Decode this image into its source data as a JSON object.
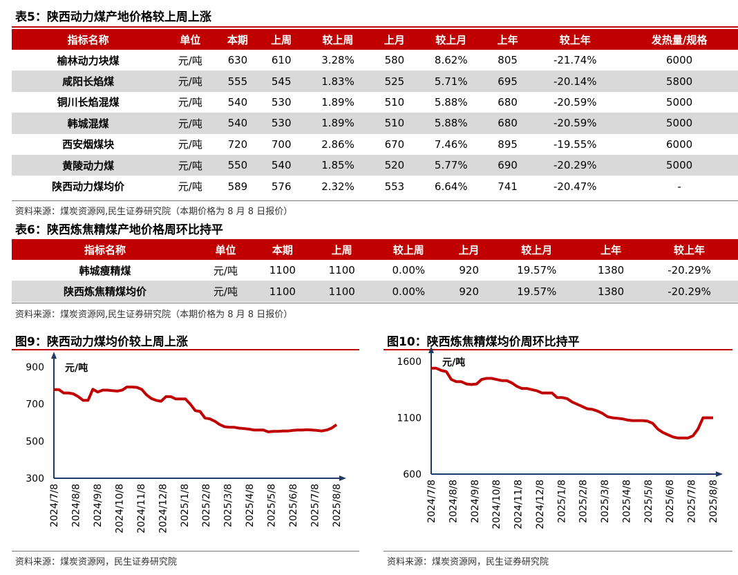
{
  "table5": {
    "title": "表5：陕西动力煤产地价格较上周上涨",
    "headers": [
      "指标名称",
      "单位",
      "本期",
      "上周",
      "较上周",
      "上月",
      "较上月",
      "上年",
      "较上年",
      "发热量/规格"
    ],
    "rows": [
      [
        "榆林动力块煤",
        "元/吨",
        "630",
        "610",
        "3.28%",
        "580",
        "8.62%",
        "805",
        "-21.74%",
        "6000"
      ],
      [
        "咸阳长焰煤",
        "元/吨",
        "555",
        "545",
        "1.83%",
        "525",
        "5.71%",
        "695",
        "-20.14%",
        "5800"
      ],
      [
        "铜川长焰混煤",
        "元/吨",
        "540",
        "530",
        "1.89%",
        "510",
        "5.88%",
        "680",
        "-20.59%",
        "5000"
      ],
      [
        "韩城混煤",
        "元/吨",
        "540",
        "530",
        "1.89%",
        "510",
        "5.88%",
        "680",
        "-20.59%",
        "5000"
      ],
      [
        "西安烟煤块",
        "元/吨",
        "720",
        "700",
        "2.86%",
        "670",
        "7.46%",
        "895",
        "-19.55%",
        "6000"
      ],
      [
        "黄陵动力煤",
        "元/吨",
        "550",
        "540",
        "1.85%",
        "520",
        "5.77%",
        "690",
        "-20.29%",
        "5000"
      ],
      [
        "陕西动力煤均价",
        "元/吨",
        "589",
        "576",
        "2.32%",
        "553",
        "6.64%",
        "741",
        "-20.47%",
        "-"
      ]
    ],
    "source": "资料来源：煤炭资源网,民生证券研究院（本期价格为 8 月 8 日报价）"
  },
  "table6": {
    "title": "表6：陕西炼焦精煤产地价格周环比持平",
    "headers": [
      "指标名称",
      "单位",
      "本期",
      "上周",
      "较上周",
      "上月",
      "较上月",
      "上年",
      "较上年"
    ],
    "rows": [
      [
        "韩城瘦精煤",
        "元/吨",
        "1100",
        "1100",
        "0.00%",
        "920",
        "19.57%",
        "1380",
        "-20.29%"
      ],
      [
        "陕西炼焦精煤均价",
        "元/吨",
        "1100",
        "1100",
        "0.00%",
        "920",
        "19.57%",
        "1380",
        "-20.29%"
      ]
    ],
    "source": "资料来源：煤炭资源网,民生证券研究院（本期价格为 8 月 8 日报价）"
  },
  "chart_data": [
    {
      "type": "line",
      "title": "图9：陕西动力煤均价较上周上涨",
      "unit_label": "元/吨",
      "x_labels": [
        "2024/7/8",
        "2024/8/8",
        "2024/9/8",
        "2024/10/8",
        "2024/11/8",
        "2024/12/8",
        "2025/1/8",
        "2025/2/8",
        "2025/3/8",
        "2025/4/8",
        "2025/5/8",
        "2025/6/8",
        "2025/7/8",
        "2025/8/8"
      ],
      "ylim": [
        300,
        900
      ],
      "yticks": [
        300,
        500,
        700,
        900
      ],
      "series": [
        {
          "color": "#c00000",
          "values": [
            778,
            778,
            760,
            760,
            755,
            740,
            720,
            720,
            780,
            765,
            775,
            775,
            772,
            770,
            775,
            792,
            792,
            790,
            780,
            750,
            730,
            720,
            715,
            740,
            740,
            728,
            728,
            728,
            700,
            665,
            660,
            625,
            620,
            608,
            590,
            578,
            575,
            575,
            570,
            568,
            565,
            560,
            560,
            560,
            550,
            553,
            553,
            555,
            555,
            558,
            560,
            560,
            562,
            560,
            558,
            555,
            560,
            570,
            589
          ]
        }
      ],
      "source": "资料来源：煤炭资源网，民生证券研究院"
    },
    {
      "type": "line",
      "title": "图10：陕西炼焦精煤均价周环比持平",
      "unit_label": "元/吨",
      "x_labels": [
        "2024/7/8",
        "2024/8/8",
        "2024/9/8",
        "2024/10/8",
        "2024/11/8",
        "2024/12/8",
        "2025/1/8",
        "2025/2/8",
        "2025/3/8",
        "2025/4/8",
        "2025/5/8",
        "2025/6/8",
        "2025/7/8",
        "2025/8/8"
      ],
      "ylim": [
        600,
        1600
      ],
      "yticks": [
        600,
        1100,
        1600
      ],
      "series": [
        {
          "color": "#c00000",
          "values": [
            1540,
            1540,
            1520,
            1510,
            1440,
            1420,
            1420,
            1400,
            1395,
            1400,
            1440,
            1450,
            1450,
            1440,
            1430,
            1430,
            1410,
            1380,
            1360,
            1360,
            1350,
            1340,
            1320,
            1320,
            1320,
            1280,
            1280,
            1270,
            1240,
            1220,
            1200,
            1180,
            1175,
            1160,
            1140,
            1110,
            1100,
            1095,
            1090,
            1080,
            1075,
            1075,
            1075,
            1070,
            1050,
            1000,
            970,
            950,
            930,
            920,
            920,
            920,
            940,
            1000,
            1100,
            1100,
            1100
          ]
        }
      ],
      "source": "资料来源：煤炭资源网，民生证券研究院"
    }
  ]
}
